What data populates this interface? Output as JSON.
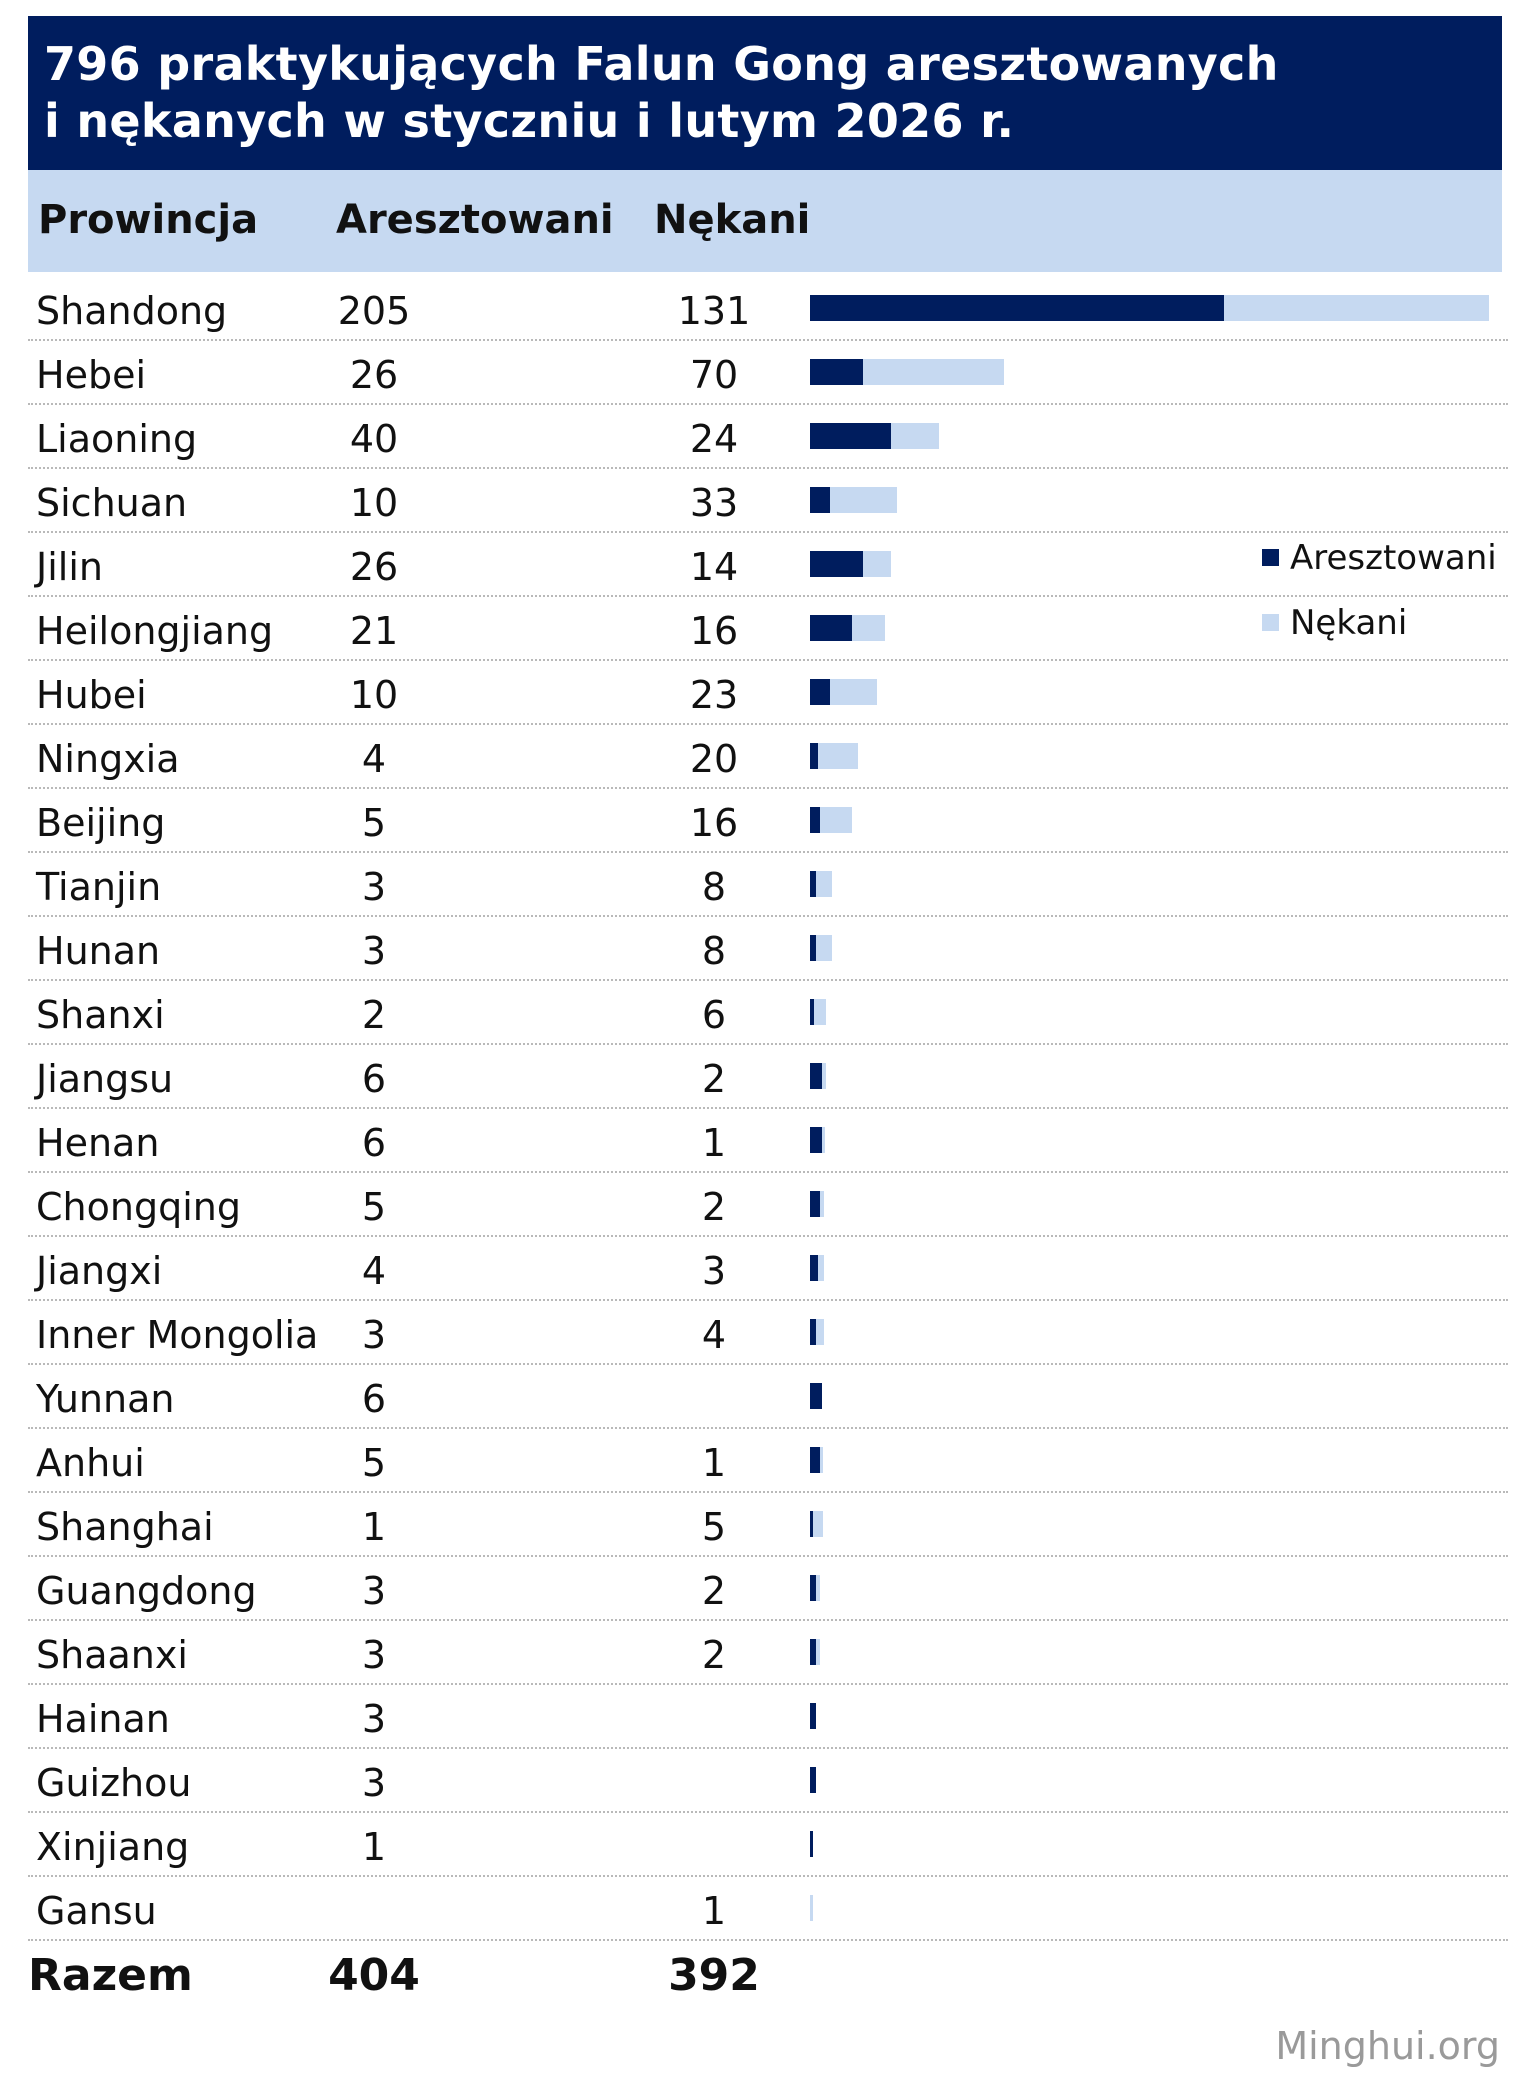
{
  "title": {
    "line1": "796 praktykujących Falun Gong aresztowanych",
    "line2": "i nękanych w styczniu i lutym 2026 r."
  },
  "headers": {
    "province": "Prowincja",
    "arrested": "Aresztowani",
    "harassed": "Nękani"
  },
  "legend": {
    "arrested": "Aresztowani",
    "harassed": "Nękani"
  },
  "colors": {
    "arrested": "#001d5e",
    "harassed": "#c6d9f1",
    "title_band": "#001d5e",
    "header_band": "#c6d9f1"
  },
  "total": {
    "label": "Razem",
    "arrested": "404",
    "harassed": "392"
  },
  "watermark": "Minghui.org",
  "chart_data": {
    "type": "bar",
    "orientation": "horizontal",
    "stacked": true,
    "title": "796 praktykujących Falun Gong aresztowanych i nękanych w styczniu i lutym 2026 r.",
    "categories": [
      "Shandong",
      "Hebei",
      "Liaoning",
      "Sichuan",
      "Jilin",
      "Heilongjiang",
      "Hubei",
      "Ningxia",
      "Beijing",
      "Tianjin",
      "Hunan",
      "Shanxi",
      "Jiangsu",
      "Henan",
      "Chongqing",
      "Jiangxi",
      "Inner Mongolia",
      "Yunnan",
      "Anhui",
      "Shanghai",
      "Guangdong",
      "Shaanxi",
      "Hainan",
      "Guizhou",
      "Xinjiang",
      "Gansu"
    ],
    "series": [
      {
        "name": "Aresztowani",
        "values": [
          205,
          26,
          40,
          10,
          26,
          21,
          10,
          4,
          5,
          3,
          3,
          2,
          6,
          6,
          5,
          4,
          3,
          6,
          5,
          1,
          3,
          3,
          3,
          3,
          1,
          null
        ]
      },
      {
        "name": "Nękani",
        "values": [
          131,
          70,
          24,
          33,
          14,
          16,
          23,
          20,
          16,
          8,
          8,
          6,
          2,
          1,
          2,
          3,
          4,
          null,
          1,
          5,
          2,
          2,
          null,
          null,
          null,
          1
        ]
      }
    ],
    "legend": "right"
  }
}
